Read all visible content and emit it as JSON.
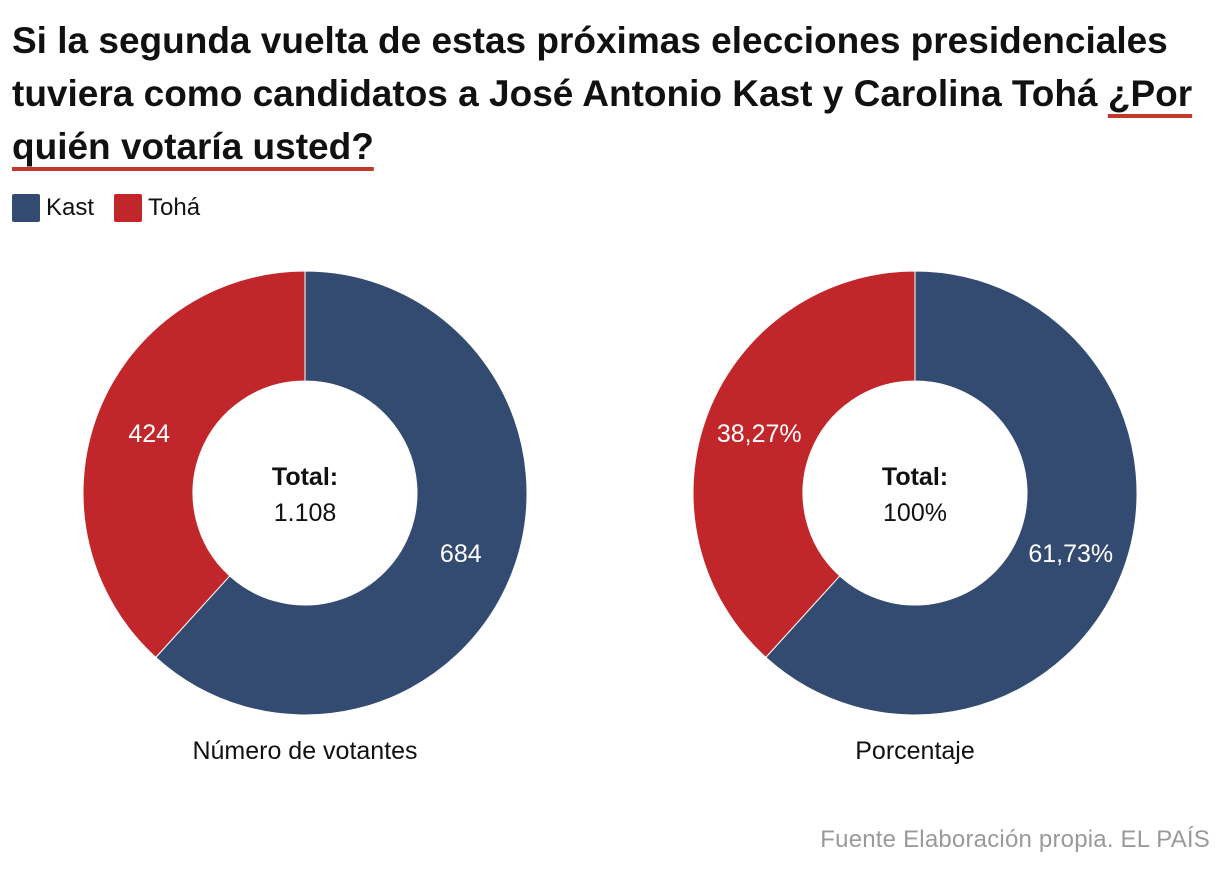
{
  "title": {
    "main": "Si la segunda vuelta de estas próximas elecciones presidenciales tuviera como candidatos a José Antonio Kast y Carolina Tohá ",
    "highlight": "¿Por quién votaría usted?"
  },
  "colors": {
    "kast": "#344b71",
    "toha": "#c1272a",
    "title_underline": "#c0392b",
    "source": "#9a9a9a"
  },
  "legend": [
    {
      "name": "Kast",
      "color": "#344b71"
    },
    {
      "name": "Tohá",
      "color": "#c1272a"
    }
  ],
  "chart_data": [
    {
      "type": "pie",
      "subtype": "donut",
      "caption": "Número de votantes",
      "center_label": "Total:",
      "center_value": "1.108",
      "slices": [
        {
          "name": "Kast",
          "value": 684,
          "label": "684"
        },
        {
          "name": "Tohá",
          "value": 424,
          "label": "424"
        }
      ]
    },
    {
      "type": "pie",
      "subtype": "donut",
      "caption": "Porcentaje",
      "center_label": "Total:",
      "center_value": "100%",
      "slices": [
        {
          "name": "Kast",
          "value": 61.73,
          "label": "61,73%"
        },
        {
          "name": "Tohá",
          "value": 38.27,
          "label": "38,27%"
        }
      ]
    }
  ],
  "source": "Fuente Elaboración propia. EL PAÍS"
}
